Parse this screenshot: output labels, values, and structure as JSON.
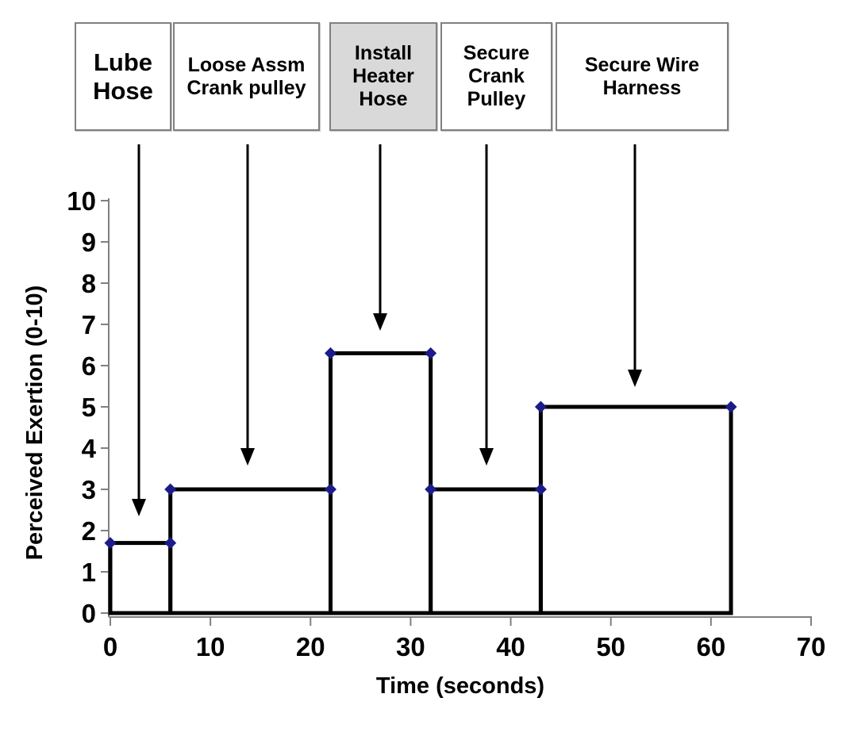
{
  "task_labels": [
    {
      "label": "Lube Hose",
      "highlighted": false
    },
    {
      "label": "Loose Assm Crank pulley",
      "highlighted": false
    },
    {
      "label": "Install Heater Hose",
      "highlighted": true
    },
    {
      "label": "Secure Crank Pulley",
      "highlighted": false
    },
    {
      "label": "Secure Wire Harness",
      "highlighted": false
    }
  ],
  "colors": {
    "background": "#ffffff",
    "task_box_bg": "#ffffff",
    "task_box_highlight_bg": "#d9d9d9",
    "task_box_border": "#808080"
  },
  "chart_data": {
    "type": "step",
    "title": "",
    "xlabel": "Time (seconds)",
    "ylabel": "Perceived Exertion (0-10)",
    "xlim": [
      0,
      70
    ],
    "ylim": [
      0,
      10
    ],
    "xticks": [
      0,
      10,
      20,
      30,
      40,
      50,
      60,
      70
    ],
    "yticks": [
      0,
      1,
      2,
      3,
      4,
      5,
      6,
      7,
      8,
      9,
      10
    ],
    "grid": false,
    "legend": false,
    "segments": [
      {
        "task": "Lube Hose",
        "t_start": 0,
        "t_end": 6,
        "exertion": 1.7
      },
      {
        "task": "Loose Assm Crank pulley",
        "t_start": 6,
        "t_end": 22,
        "exertion": 3
      },
      {
        "task": "Install Heater Hose",
        "t_start": 22,
        "t_end": 32,
        "exertion": 6.3
      },
      {
        "task": "Secure Crank Pulley",
        "t_start": 32,
        "t_end": 43,
        "exertion": 3
      },
      {
        "task": "Secure Wire Harness",
        "t_start": 43,
        "t_end": 62,
        "exertion": 5
      }
    ],
    "marker_points": [
      [
        0,
        1.7
      ],
      [
        6,
        1.7
      ],
      [
        6,
        3
      ],
      [
        22,
        3
      ],
      [
        22,
        6.3
      ],
      [
        32,
        6.3
      ],
      [
        32,
        3
      ],
      [
        43,
        3
      ],
      [
        43,
        5
      ],
      [
        62,
        5
      ]
    ],
    "line_color": "#000000",
    "marker_color": "#1b1b8a",
    "marker_shape": "diamond",
    "axis_color": "#808080"
  }
}
